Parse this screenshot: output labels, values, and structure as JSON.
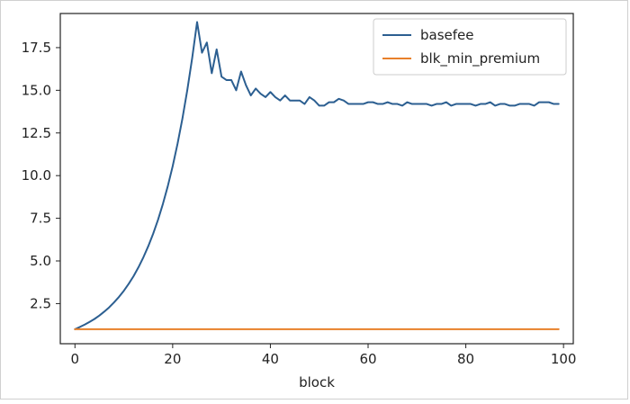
{
  "chart_data": {
    "type": "line",
    "title": "",
    "xlabel": "block",
    "ylabel": "",
    "xlim": [
      -3,
      102
    ],
    "ylim": [
      0.15,
      19.5
    ],
    "xticks": [
      0,
      20,
      40,
      60,
      80,
      100
    ],
    "yticks": [
      2.5,
      5.0,
      7.5,
      10.0,
      12.5,
      15.0,
      17.5
    ],
    "grid": false,
    "legend": "top-right",
    "series": [
      {
        "name": "basefee",
        "color": "#2c5f91",
        "x": [
          0,
          1,
          2,
          3,
          4,
          5,
          6,
          7,
          8,
          9,
          10,
          11,
          12,
          13,
          14,
          15,
          16,
          17,
          18,
          19,
          20,
          21,
          22,
          23,
          24,
          25,
          26,
          27,
          28,
          29,
          30,
          31,
          32,
          33,
          34,
          35,
          36,
          37,
          38,
          39,
          40,
          41,
          42,
          43,
          44,
          45,
          46,
          47,
          48,
          49,
          50,
          51,
          52,
          53,
          54,
          55,
          56,
          57,
          58,
          59,
          60,
          61,
          62,
          63,
          64,
          65,
          66,
          67,
          68,
          69,
          70,
          71,
          72,
          73,
          74,
          75,
          76,
          77,
          78,
          79,
          80,
          81,
          82,
          83,
          84,
          85,
          86,
          87,
          88,
          89,
          90,
          91,
          92,
          93,
          94,
          95,
          96,
          97,
          98,
          99
        ],
        "values": [
          1.0,
          1.13,
          1.27,
          1.43,
          1.6,
          1.8,
          2.03,
          2.28,
          2.57,
          2.89,
          3.25,
          3.66,
          4.11,
          4.63,
          5.21,
          5.86,
          6.59,
          7.41,
          8.34,
          9.38,
          10.55,
          11.87,
          13.35,
          15.02,
          16.9,
          19.0,
          17.2,
          17.8,
          16.0,
          17.4,
          15.8,
          15.6,
          15.6,
          15.0,
          16.1,
          15.3,
          14.7,
          15.1,
          14.8,
          14.6,
          14.9,
          14.6,
          14.4,
          14.7,
          14.4,
          14.4,
          14.4,
          14.2,
          14.6,
          14.4,
          14.1,
          14.1,
          14.3,
          14.3,
          14.5,
          14.4,
          14.2,
          14.2,
          14.2,
          14.2,
          14.3,
          14.3,
          14.2,
          14.2,
          14.3,
          14.2,
          14.2,
          14.1,
          14.3,
          14.2,
          14.2,
          14.2,
          14.2,
          14.1,
          14.2,
          14.2,
          14.3,
          14.1,
          14.2,
          14.2,
          14.2,
          14.2,
          14.1,
          14.2,
          14.2,
          14.3,
          14.1,
          14.2,
          14.2,
          14.1,
          14.1,
          14.2,
          14.2,
          14.2,
          14.1,
          14.3,
          14.3,
          14.3,
          14.2,
          14.2
        ]
      },
      {
        "name": "blk_min_premium",
        "color": "#e8802a",
        "x": [
          0,
          99
        ],
        "values": [
          1.0,
          1.0
        ]
      }
    ]
  }
}
